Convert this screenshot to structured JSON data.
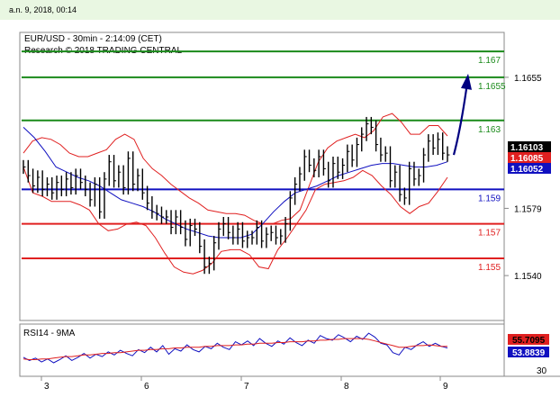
{
  "header": {
    "datetime": "a.n. 9, 2018, 00:14",
    "title": "EUR/USD - 30min - 2:14:09 (CET)",
    "source": "Research © 2018 TRADING CENTRAL"
  },
  "colors": {
    "background_top": "#e9f7e2",
    "resistance": "#1a8a1a",
    "support": "#e02020",
    "pivot": "#1010c0",
    "bollinger": "#e02020",
    "moving_average": "#1010c0",
    "price": "#000000",
    "arrow": "#000080"
  },
  "chart_data": [
    {
      "type": "line",
      "name": "price",
      "ylim": [
        1.1515,
        1.168
      ],
      "y_ticks": [
        "1.1655",
        "1.1579",
        "1.1540"
      ],
      "y_tick_values": [
        1.1655,
        1.1579,
        1.154
      ],
      "x_ticks": [
        "3",
        "6",
        "7",
        "8",
        "9"
      ],
      "levels": [
        {
          "label": "1.167",
          "value": 1.167,
          "kind": "resistance"
        },
        {
          "label": "1.1655",
          "value": 1.1655,
          "kind": "resistance"
        },
        {
          "label": "1.163",
          "value": 1.163,
          "kind": "resistance"
        },
        {
          "label": "1.159",
          "value": 1.159,
          "kind": "pivot"
        },
        {
          "label": "1.157",
          "value": 1.157,
          "kind": "support"
        },
        {
          "label": "1.155",
          "value": 1.155,
          "kind": "support"
        }
      ],
      "price_tags": [
        {
          "label": "1.16103",
          "value": 1.16103,
          "bg": "#000000",
          "fg": "#ffffff"
        },
        {
          "label": "1.16085",
          "value": 1.16085,
          "bg": "#e02020",
          "fg": "#ffffff"
        },
        {
          "label": "1.16052",
          "value": 1.16052,
          "bg": "#1010c0",
          "fg": "#ffffff"
        }
      ],
      "price_series": [
        1.1603,
        1.1598,
        1.1592,
        1.1597,
        1.159,
        1.1593,
        1.1588,
        1.1594,
        1.159,
        1.1596,
        1.1591,
        1.1598,
        1.1594,
        1.159,
        1.1584,
        1.1593,
        1.1577,
        1.1596,
        1.1606,
        1.1595,
        1.16,
        1.1591,
        1.1608,
        1.1593,
        1.1598,
        1.1588,
        1.1582,
        1.1577,
        1.1576,
        1.1574,
        1.1574,
        1.1568,
        1.1574,
        1.1568,
        1.1561,
        1.1569,
        1.1567,
        1.1557,
        1.1545,
        1.1547,
        1.1559,
        1.1567,
        1.157,
        1.1565,
        1.1562,
        1.1567,
        1.156,
        1.1562,
        1.1562,
        1.1568,
        1.156,
        1.1564,
        1.1565,
        1.1562,
        1.1563,
        1.157,
        1.1585,
        1.1593,
        1.1599,
        1.1609,
        1.1604,
        1.1601,
        1.1609,
        1.1602,
        1.1595,
        1.1605,
        1.16,
        1.1604,
        1.1612,
        1.1607,
        1.1616,
        1.1622,
        1.1628,
        1.1626,
        1.1616,
        1.161,
        1.1611,
        1.1595,
        1.16,
        1.1587,
        1.1585,
        1.1602,
        1.1596,
        1.1598,
        1.161,
        1.1618,
        1.1614,
        1.1619,
        1.1611,
        1.161
      ],
      "upper_band": [
        1.1611,
        1.1618,
        1.162,
        1.1619,
        1.1616,
        1.1611,
        1.1609,
        1.1609,
        1.1611,
        1.1613,
        1.1619,
        1.1622,
        1.1619,
        1.1608,
        1.1602,
        1.1598,
        1.1593,
        1.1589,
        1.1585,
        1.1582,
        1.1578,
        1.1577,
        1.1576,
        1.1576,
        1.1575,
        1.1572,
        1.157,
        1.157,
        1.1572,
        1.1573,
        1.1578,
        1.1592,
        1.1606,
        1.1614,
        1.1618,
        1.162,
        1.1622,
        1.162,
        1.1624,
        1.1632,
        1.1634,
        1.1629,
        1.1622,
        1.1622,
        1.1627,
        1.1627,
        1.1621
      ],
      "lower_band": [
        1.1603,
        1.1588,
        1.1586,
        1.1583,
        1.1583,
        1.1583,
        1.1581,
        1.1578,
        1.157,
        1.1566,
        1.1567,
        1.157,
        1.1571,
        1.1569,
        1.1562,
        1.1553,
        1.1545,
        1.1542,
        1.1541,
        1.1543,
        1.1547,
        1.1554,
        1.1555,
        1.1555,
        1.1552,
        1.1545,
        1.1544,
        1.1555,
        1.1562,
        1.157,
        1.1578,
        1.159,
        1.1593,
        1.1594,
        1.1595,
        1.1597,
        1.1601,
        1.1598,
        1.1592,
        1.1587,
        1.158,
        1.1576,
        1.158,
        1.1582,
        1.1589,
        1.1597
      ],
      "ma_series": [
        1.1626,
        1.162,
        1.1612,
        1.1603,
        1.16,
        1.1597,
        1.1595,
        1.1592,
        1.1588,
        1.1584,
        1.1582,
        1.158,
        1.1577,
        1.1573,
        1.157,
        1.1567,
        1.1565,
        1.1563,
        1.1562,
        1.1562,
        1.1562,
        1.1564,
        1.157,
        1.1577,
        1.1583,
        1.1588,
        1.159,
        1.1592,
        1.1595,
        1.1598,
        1.16,
        1.1602,
        1.1604,
        1.1605,
        1.1605,
        1.1604,
        1.1603,
        1.1603,
        1.1604,
        1.1606
      ],
      "forecast": {
        "from": 1.161,
        "to": 1.1655
      }
    },
    {
      "type": "line",
      "name": "RSI14 - 9MA",
      "title": "RSI14 - 9MA",
      "ylim": [
        20,
        80
      ],
      "y_ticks": [
        "30"
      ],
      "y_tick_values": [
        30
      ],
      "tags": [
        {
          "label": "55.7095",
          "value": 55.7095,
          "bg": "#e02020",
          "fg": "#000000"
        },
        {
          "label": "53.8839",
          "value": 53.8839,
          "bg": "#1010c0",
          "fg": "#ffffff"
        }
      ],
      "rsi_series": [
        42,
        38,
        41,
        36,
        40,
        35,
        39,
        44,
        38,
        42,
        47,
        41,
        46,
        43,
        49,
        45,
        51,
        47,
        44,
        52,
        48,
        55,
        49,
        57,
        46,
        53,
        50,
        58,
        52,
        49,
        56,
        53,
        60,
        55,
        52,
        62,
        58,
        63,
        57,
        66,
        60,
        56,
        63,
        59,
        67,
        61,
        57,
        64,
        60,
        70,
        66,
        64,
        71,
        67,
        62,
        69,
        65,
        73,
        68,
        60,
        58,
        48,
        45,
        55,
        52,
        58,
        62,
        56,
        60,
        56,
        54
      ],
      "rsi_ma": [
        40,
        39,
        39,
        40,
        40,
        41,
        42,
        43,
        43,
        44,
        45,
        45,
        46,
        47,
        47,
        48,
        48,
        49,
        50,
        51,
        51,
        52,
        52,
        53,
        53,
        54,
        54,
        55,
        55,
        55,
        56,
        56,
        57,
        57,
        57,
        58,
        58,
        59,
        59,
        60,
        60,
        60,
        61,
        61,
        62,
        62,
        62,
        63,
        63,
        64,
        64,
        65,
        65,
        66,
        66,
        66,
        66,
        65,
        63,
        61,
        59,
        57,
        55,
        55,
        56,
        57,
        57,
        58,
        57,
        56,
        56
      ]
    }
  ]
}
